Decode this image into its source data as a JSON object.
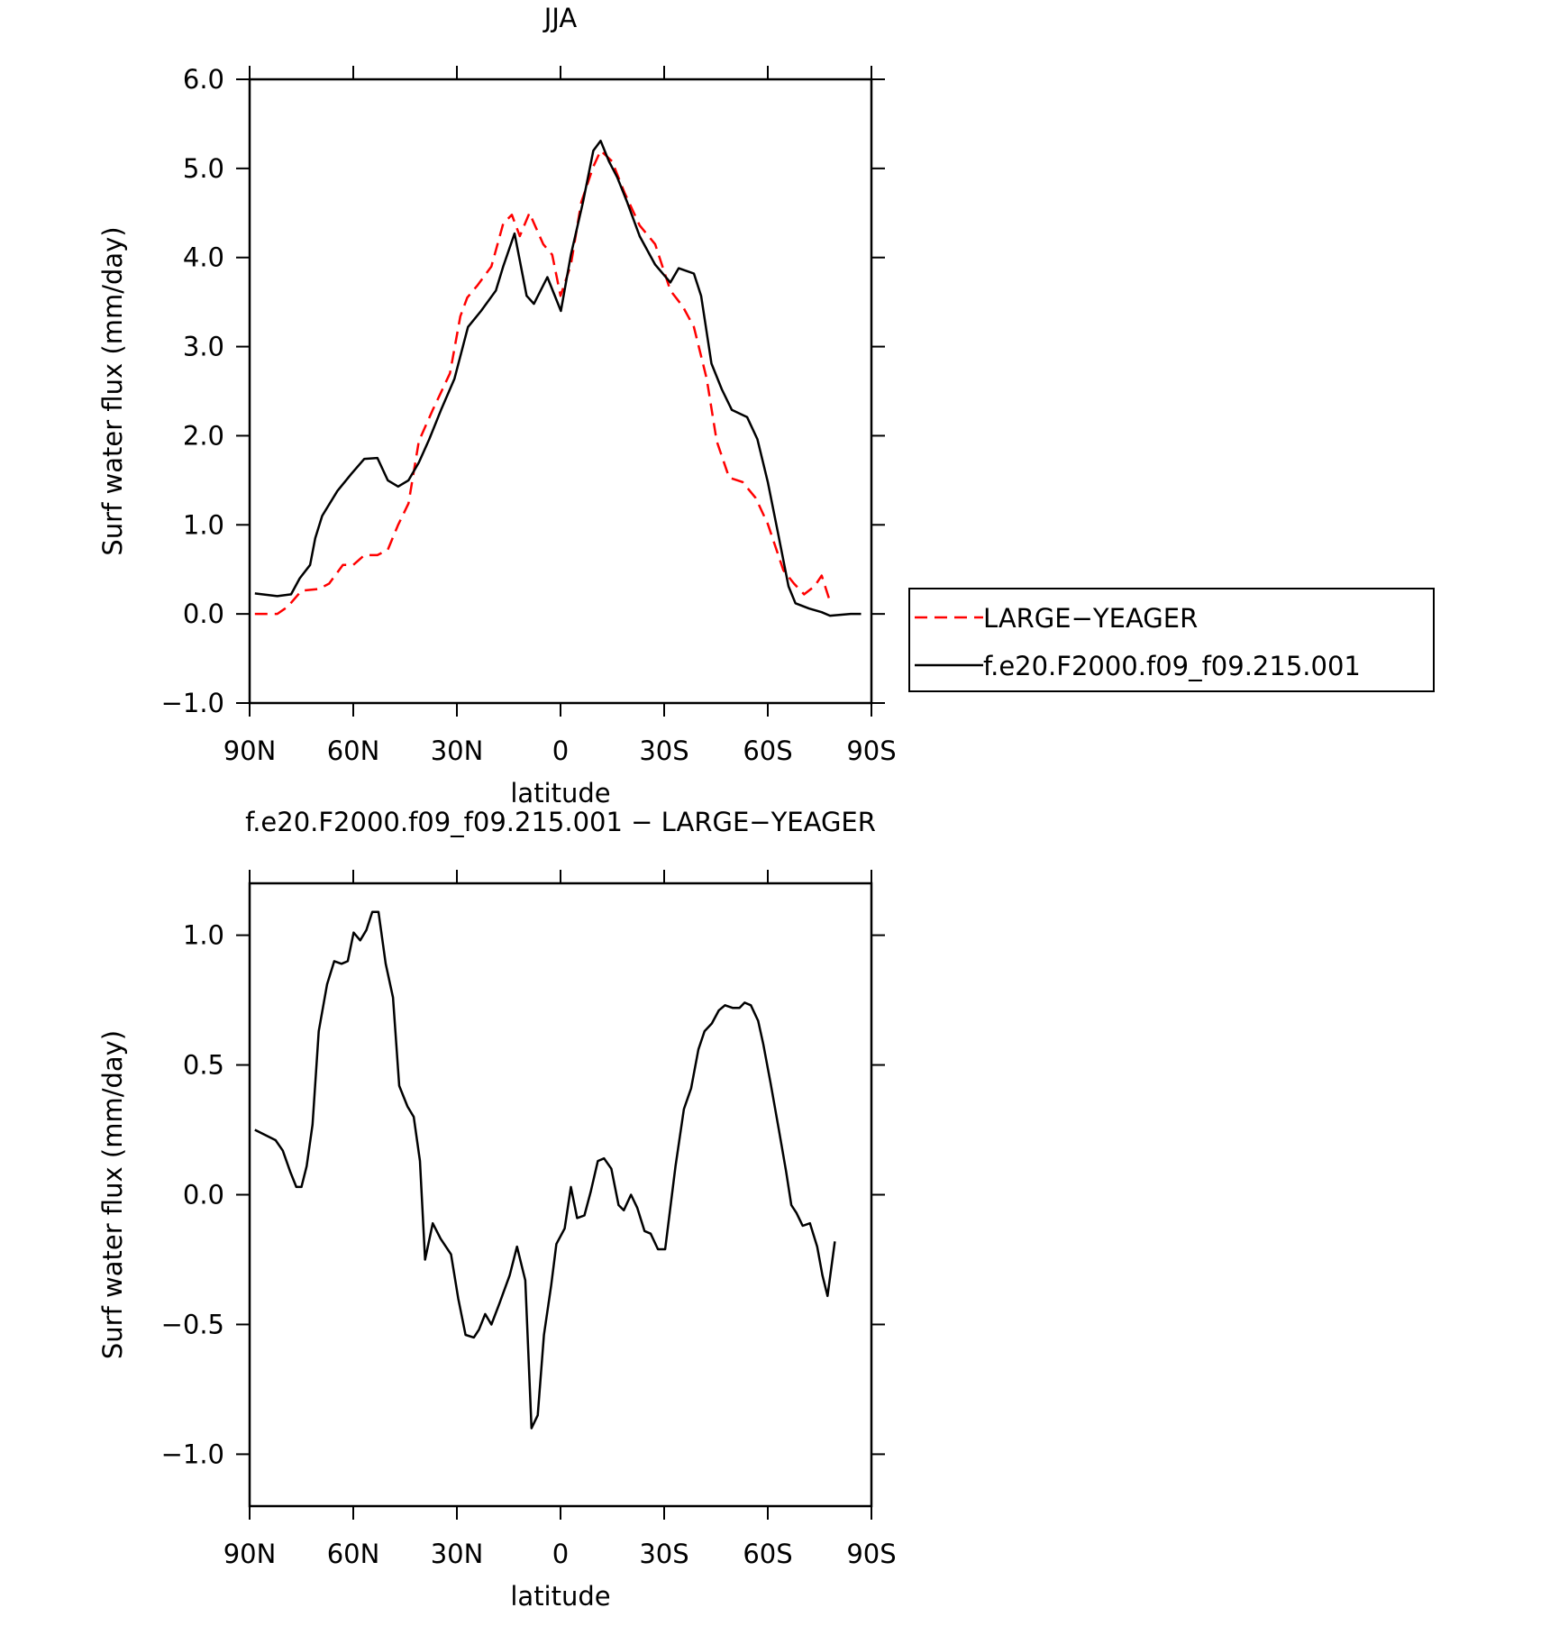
{
  "chart_data": [
    {
      "type": "line",
      "title": "JJA",
      "xlabel": "latitude",
      "ylabel": "Surf water flux (mm/day)",
      "xlim": [
        90,
        -90
      ],
      "xticks": [
        {
          "value": 90,
          "label": "90N"
        },
        {
          "value": 60,
          "label": "60N"
        },
        {
          "value": 30,
          "label": "30N"
        },
        0,
        {
          "value": -30,
          "label": "30S"
        },
        {
          "value": -60,
          "label": "60S"
        },
        {
          "value": -90,
          "label": "90S"
        }
      ],
      "ylim": [
        -1.0,
        6.0
      ],
      "yticks": [
        {
          "value": -1,
          "label": "−1.0"
        },
        {
          "value": 0,
          "label": "0.0"
        },
        {
          "value": 1,
          "label": "1.0"
        },
        {
          "value": 2,
          "label": "2.0"
        },
        {
          "value": 3,
          "label": "3.0"
        },
        {
          "value": 4,
          "label": "4.0"
        },
        {
          "value": 5,
          "label": "5.0"
        },
        {
          "value": 6,
          "label": "6.0"
        }
      ],
      "legend": true,
      "series": [
        {
          "name": "LARGE−YEAGER",
          "color": "#ff0000",
          "style": "dashed",
          "x": [
            88.5,
            82,
            79,
            75,
            70,
            67,
            63,
            60,
            56.8,
            53,
            50,
            47,
            44,
            41,
            37,
            32,
            29,
            27,
            24,
            20,
            16.6,
            14.1,
            11.8,
            9,
            5,
            2.4,
            0,
            -3,
            -6,
            -9.5,
            -11.6,
            -14.9,
            -18.5,
            -22.9,
            -27.4,
            -31.8,
            -35.4,
            -38.6,
            -42.3,
            -45.2,
            -48.8,
            -52.7,
            -56.5,
            -60,
            -64.5,
            -67.6,
            -70.5,
            -73.5,
            -75.6,
            -78
          ],
          "values": [
            0,
            0,
            0.08,
            0.26,
            0.28,
            0.34,
            0.55,
            0.55,
            0.66,
            0.66,
            0.72,
            1.0,
            1.24,
            1.94,
            2.29,
            2.7,
            3.34,
            3.55,
            3.69,
            3.9,
            4.38,
            4.48,
            4.24,
            4.5,
            4.15,
            4.03,
            3.57,
            3.92,
            4.62,
            5.02,
            5.2,
            5.08,
            4.73,
            4.36,
            4.15,
            3.63,
            3.45,
            3.22,
            2.64,
            1.94,
            1.53,
            1.48,
            1.3,
            1.01,
            0.49,
            0.34,
            0.22,
            0.31,
            0.43,
            0.14
          ]
        },
        {
          "name": "f.e20.F2000.f09_f09.215.001",
          "color": "#000000",
          "style": "solid",
          "x": [
            88.5,
            82,
            78,
            75.5,
            72.5,
            71,
            69,
            64.6,
            60.6,
            56.8,
            53,
            50,
            47,
            44,
            41,
            38,
            34.6,
            30.7,
            26.8,
            23,
            18.7,
            16.6,
            13.3,
            9.8,
            7.7,
            3.8,
            -0.1,
            -3,
            -6.5,
            -9.5,
            -11.6,
            -14,
            -16.4,
            -19.3,
            -22.9,
            -27.4,
            -31.8,
            -34.2,
            -38.6,
            -40.7,
            -43.7,
            -46.7,
            -49.6,
            -54,
            -57,
            -60,
            -63,
            -66,
            -68,
            -72,
            -75.6,
            -78,
            -81,
            -84,
            -87
          ],
          "values": [
            0.23,
            0.2,
            0.22,
            0.4,
            0.55,
            0.85,
            1.1,
            1.38,
            1.57,
            1.74,
            1.75,
            1.5,
            1.43,
            1.5,
            1.7,
            1.96,
            2.29,
            2.64,
            3.22,
            3.4,
            3.63,
            3.9,
            4.27,
            3.57,
            3.48,
            3.78,
            3.4,
            4.03,
            4.62,
            5.2,
            5.31,
            5.08,
            4.9,
            4.62,
            4.24,
            3.92,
            3.72,
            3.88,
            3.82,
            3.57,
            2.81,
            2.52,
            2.29,
            2.21,
            1.96,
            1.48,
            0.9,
            0.31,
            0.12,
            0.06,
            0.02,
            -0.02,
            -0.01,
            0,
            0
          ]
        }
      ]
    },
    {
      "type": "line",
      "title": "f.e20.F2000.f09_f09.215.001 − LARGE−YEAGER",
      "xlabel": "latitude",
      "ylabel": "Surf water flux (mm/day)",
      "xlim": [
        90,
        -90
      ],
      "xticks": [
        {
          "value": 90,
          "label": "90N"
        },
        {
          "value": 60,
          "label": "60N"
        },
        {
          "value": 30,
          "label": "30N"
        },
        0,
        {
          "value": -30,
          "label": "30S"
        },
        {
          "value": -60,
          "label": "60S"
        },
        {
          "value": -90,
          "label": "90S"
        }
      ],
      "ylim": [
        -1.2,
        1.2
      ],
      "yticks": [
        {
          "value": -1,
          "label": "−1.0"
        },
        {
          "value": -0.5,
          "label": "−0.5"
        },
        {
          "value": 0,
          "label": "0.0"
        },
        {
          "value": 0.5,
          "label": "0.5"
        },
        {
          "value": 1,
          "label": "1.0"
        }
      ],
      "legend": false,
      "series": [
        {
          "color": "#000000",
          "style": "solid",
          "x": [
            88.5,
            82.5,
            80.4,
            78.3,
            76.5,
            75,
            73.5,
            71.8,
            70,
            67.6,
            65.5,
            63.4,
            61.6,
            59.9,
            58,
            56.2,
            54.5,
            52.7,
            50.6,
            48.5,
            46.7,
            44.3,
            42.5,
            40.7,
            39.2,
            37,
            34.7,
            31.7,
            29.6,
            27.5,
            25.1,
            23.6,
            21.8,
            20,
            17.7,
            14.7,
            12.6,
            10.2,
            8.4,
            6.6,
            4.8,
            2.7,
            1.2,
            -1.2,
            -3,
            -4.8,
            -6.9,
            -8.7,
            -10.8,
            -12.6,
            -14.7,
            -16.8,
            -18.3,
            -20.4,
            -22.2,
            -24.3,
            -26.1,
            -28.2,
            -30.3,
            -33.3,
            -35.7,
            -37.8,
            -39.9,
            -41.7,
            -43.8,
            -45.8,
            -47.6,
            -49.8,
            -51.8,
            -53.3,
            -55.1,
            -57.2,
            -58.7,
            -60.8,
            -63.2,
            -65.3,
            -66.8,
            -68.3,
            -70.1,
            -72.2,
            -74.3,
            -75.8,
            -77.3,
            -79.4
          ],
          "values": [
            0.25,
            0.21,
            0.17,
            0.09,
            0.03,
            0.03,
            0.11,
            0.27,
            0.63,
            0.81,
            0.9,
            0.89,
            0.9,
            1.01,
            0.98,
            1.02,
            1.09,
            1.09,
            0.89,
            0.76,
            0.42,
            0.34,
            0.3,
            0.13,
            -0.25,
            -0.11,
            -0.17,
            -0.23,
            -0.4,
            -0.54,
            -0.55,
            -0.52,
            -0.46,
            -0.5,
            -0.42,
            -0.31,
            -0.2,
            -0.33,
            -0.9,
            -0.85,
            -0.54,
            -0.35,
            -0.19,
            -0.13,
            0.03,
            -0.09,
            -0.08,
            0.01,
            0.13,
            0.14,
            0.1,
            -0.04,
            -0.06,
            0,
            -0.05,
            -0.14,
            -0.15,
            -0.21,
            -0.21,
            0.11,
            0.33,
            0.41,
            0.56,
            0.63,
            0.66,
            0.71,
            0.73,
            0.72,
            0.72,
            0.74,
            0.73,
            0.67,
            0.58,
            0.43,
            0.25,
            0.09,
            -0.04,
            -0.07,
            -0.12,
            -0.11,
            -0.2,
            -0.31,
            -0.39,
            -0.18
          ]
        }
      ]
    }
  ]
}
